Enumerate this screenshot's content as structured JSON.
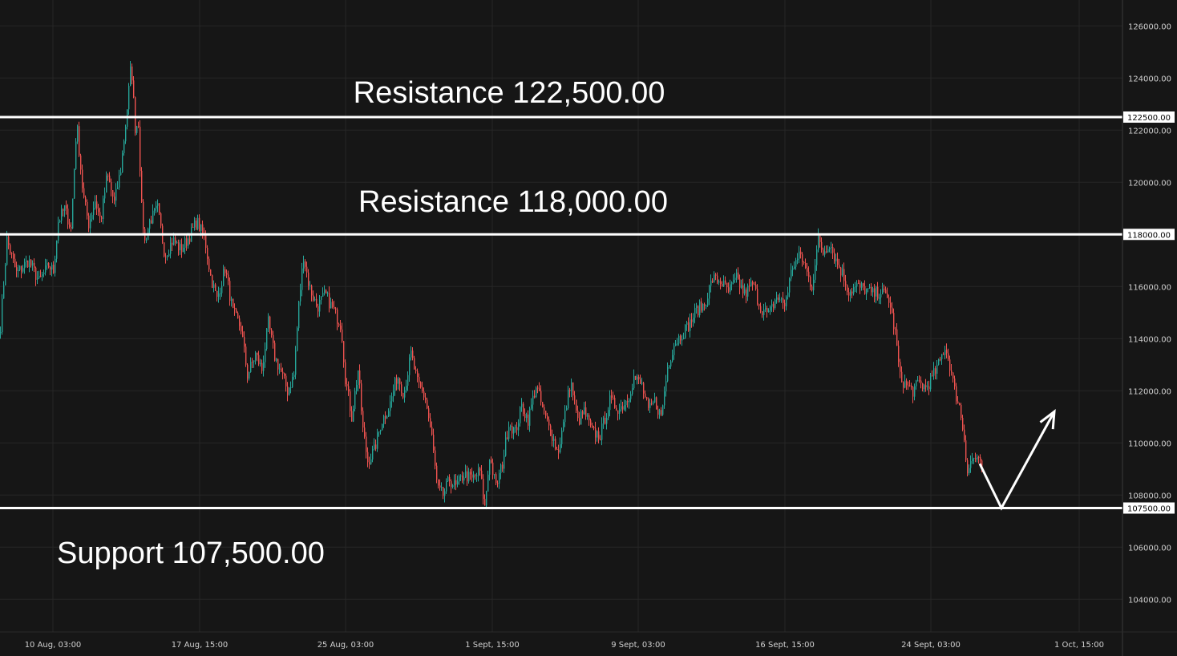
{
  "chart_data": {
    "type": "candlestick",
    "x_ticks": [
      "10 Aug, 03:00",
      "17 Aug, 15:00",
      "25 Aug, 03:00",
      "1 Sept, 15:00",
      "9 Sept, 03:00",
      "16 Sept, 15:00",
      "24 Sept, 03:00",
      "1 Oct, 15:00"
    ],
    "y_ticks": [
      "104000.00",
      "106000.00",
      "108000.00",
      "110000.00",
      "112000.00",
      "114000.00",
      "116000.00",
      "120000.00",
      "122000.00",
      "124000.00",
      "126000.00"
    ],
    "ylim": [
      102500,
      127000
    ],
    "grid": true,
    "levels": [
      {
        "value": 122500,
        "tag": "122500.00",
        "label": "Resistance 122,500.00"
      },
      {
        "value": 118000,
        "tag": "118000.00",
        "label": "Resistance 118,000.00"
      },
      {
        "value": 107500,
        "tag": "107500.00",
        "label": "Support 107,500.00"
      }
    ],
    "price_path": [
      [
        0,
        114500
      ],
      [
        8,
        117800
      ],
      [
        20,
        116500
      ],
      [
        35,
        117000
      ],
      [
        48,
        116200
      ],
      [
        60,
        116800
      ],
      [
        66,
        116600
      ],
      [
        72,
        118500
      ],
      [
        80,
        119000
      ],
      [
        88,
        118200
      ],
      [
        95,
        122300
      ],
      [
        103,
        119500
      ],
      [
        110,
        118400
      ],
      [
        118,
        119300
      ],
      [
        125,
        118500
      ],
      [
        133,
        120300
      ],
      [
        142,
        119200
      ],
      [
        150,
        120500
      ],
      [
        157,
        122500
      ],
      [
        163,
        124600
      ],
      [
        168,
        122100
      ],
      [
        172,
        122300
      ],
      [
        176,
        119000
      ],
      [
        180,
        117700
      ],
      [
        186,
        118500
      ],
      [
        196,
        119000
      ],
      [
        205,
        117200
      ],
      [
        215,
        117800
      ],
      [
        225,
        117400
      ],
      [
        235,
        117900
      ],
      [
        245,
        118500
      ],
      [
        255,
        117800
      ],
      [
        262,
        116400
      ],
      [
        270,
        115500
      ],
      [
        280,
        116700
      ],
      [
        290,
        115000
      ],
      [
        300,
        114400
      ],
      [
        308,
        112600
      ],
      [
        318,
        113400
      ],
      [
        326,
        112800
      ],
      [
        334,
        114600
      ],
      [
        342,
        113300
      ],
      [
        350,
        112700
      ],
      [
        358,
        112000
      ],
      [
        366,
        112600
      ],
      [
        372,
        115300
      ],
      [
        378,
        117200
      ],
      [
        385,
        116000
      ],
      [
        395,
        115200
      ],
      [
        405,
        115700
      ],
      [
        415,
        115100
      ],
      [
        425,
        114500
      ],
      [
        430,
        112500
      ],
      [
        438,
        111000
      ],
      [
        446,
        112800
      ],
      [
        452,
        110500
      ],
      [
        458,
        109300
      ],
      [
        466,
        109700
      ],
      [
        475,
        110800
      ],
      [
        485,
        111400
      ],
      [
        495,
        112600
      ],
      [
        503,
        111900
      ],
      [
        512,
        113400
      ],
      [
        520,
        112300
      ],
      [
        530,
        111700
      ],
      [
        538,
        110200
      ],
      [
        545,
        108200
      ],
      [
        552,
        108000
      ],
      [
        560,
        108600
      ],
      [
        568,
        108300
      ],
      [
        578,
        108800
      ],
      [
        588,
        108600
      ],
      [
        598,
        108900
      ],
      [
        604,
        107500
      ],
      [
        610,
        109500
      ],
      [
        618,
        108300
      ],
      [
        626,
        109200
      ],
      [
        634,
        110800
      ],
      [
        642,
        110400
      ],
      [
        650,
        111400
      ],
      [
        658,
        110900
      ],
      [
        668,
        112200
      ],
      [
        678,
        111100
      ],
      [
        688,
        110300
      ],
      [
        695,
        109600
      ],
      [
        703,
        110900
      ],
      [
        711,
        112400
      ],
      [
        720,
        110800
      ],
      [
        728,
        111200
      ],
      [
        738,
        110400
      ],
      [
        748,
        110300
      ],
      [
        760,
        111600
      ],
      [
        772,
        111300
      ],
      [
        782,
        111700
      ],
      [
        790,
        112500
      ],
      [
        800,
        112200
      ],
      [
        808,
        111200
      ],
      [
        816,
        111600
      ],
      [
        824,
        111000
      ],
      [
        832,
        112900
      ],
      [
        840,
        113800
      ],
      [
        850,
        114200
      ],
      [
        860,
        114600
      ],
      [
        868,
        115100
      ],
      [
        878,
        115300
      ],
      [
        888,
        116300
      ],
      [
        898,
        116200
      ],
      [
        908,
        115800
      ],
      [
        918,
        116300
      ],
      [
        928,
        115700
      ],
      [
        938,
        116100
      ],
      [
        948,
        115200
      ],
      [
        958,
        114900
      ],
      [
        968,
        115600
      ],
      [
        978,
        115300
      ],
      [
        988,
        116800
      ],
      [
        998,
        117200
      ],
      [
        1006,
        116500
      ],
      [
        1012,
        116000
      ],
      [
        1020,
        117800
      ],
      [
        1026,
        117300
      ],
      [
        1034,
        117700
      ],
      [
        1042,
        117000
      ],
      [
        1050,
        116500
      ],
      [
        1058,
        115800
      ],
      [
        1068,
        116000
      ],
      [
        1078,
        115900
      ],
      [
        1088,
        115700
      ],
      [
        1098,
        115800
      ],
      [
        1108,
        115500
      ],
      [
        1116,
        114200
      ],
      [
        1122,
        112500
      ],
      [
        1130,
        112200
      ],
      [
        1138,
        112000
      ],
      [
        1146,
        112300
      ],
      [
        1154,
        112100
      ],
      [
        1162,
        112500
      ],
      [
        1170,
        113000
      ],
      [
        1178,
        113700
      ],
      [
        1184,
        113000
      ],
      [
        1190,
        112000
      ],
      [
        1196,
        111400
      ],
      [
        1202,
        110200
      ],
      [
        1206,
        108900
      ],
      [
        1212,
        109400
      ],
      [
        1218,
        109400
      ],
      [
        1222,
        109100
      ]
    ],
    "projection_arrow": [
      [
        1222,
        109200
      ],
      [
        1249,
        107500
      ],
      [
        1315,
        111200
      ]
    ]
  }
}
